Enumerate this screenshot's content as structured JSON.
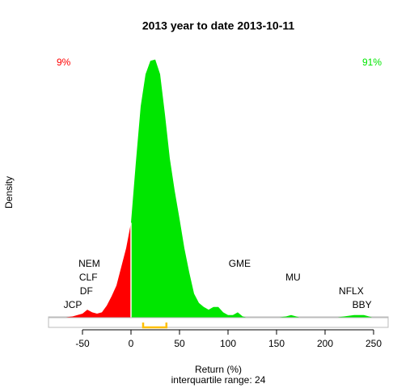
{
  "chart_data": {
    "type": "density",
    "title": "2013  year to date 2013-10-11",
    "x_label": "Return (%)",
    "y_label": "Density",
    "subtitle": "interquartile range: 24",
    "left_label": "9%",
    "right_label": "91%",
    "negative_color": "#ff0000",
    "positive_color": "#00e600",
    "iqr": {
      "q1": 12.5,
      "q3": 36.5,
      "color": "#ffc000"
    },
    "xlim": [
      -85,
      265
    ],
    "xticks": [
      -50,
      0,
      50,
      100,
      150,
      200,
      250
    ],
    "ylim": [
      0,
      0.02
    ],
    "x": [
      -70,
      -60,
      -50,
      -45,
      -40,
      -35,
      -30,
      -25,
      -20,
      -15,
      -10,
      -5,
      0,
      5,
      10,
      15,
      20,
      25,
      30,
      35,
      40,
      45,
      50,
      55,
      60,
      65,
      70,
      75,
      80,
      85,
      90,
      95,
      100,
      105,
      110,
      115,
      120,
      150,
      160,
      165,
      170,
      175,
      210,
      220,
      230,
      240,
      245,
      250
    ],
    "values": [
      0,
      0.0001,
      0.0003,
      0.0006,
      0.0004,
      0.0003,
      0.0004,
      0.0009,
      0.0016,
      0.0024,
      0.0038,
      0.0052,
      0.0071,
      0.0116,
      0.0158,
      0.0182,
      0.0192,
      0.0193,
      0.0182,
      0.0152,
      0.0119,
      0.0095,
      0.0074,
      0.0052,
      0.0034,
      0.0018,
      0.0011,
      0.0008,
      0.0006,
      0.0008,
      0.0008,
      0.0004,
      0.0002,
      0.0002,
      0.0004,
      0.0001,
      0,
      0,
      0.0001,
      0.0002,
      0.0001,
      0,
      0,
      0.0001,
      0.0002,
      0.0002,
      0.0001,
      0
    ],
    "stock_labels": [
      {
        "text": "JCP",
        "x": -60
      },
      {
        "text": "DF",
        "x": -46
      },
      {
        "text": "CLF",
        "x": -44
      },
      {
        "text": "NEM",
        "x": -43
      },
      {
        "text": "GME",
        "x": 112
      },
      {
        "text": "MU",
        "x": 167
      },
      {
        "text": "NFLX",
        "x": 227
      },
      {
        "text": "BBY",
        "x": 238
      }
    ]
  }
}
